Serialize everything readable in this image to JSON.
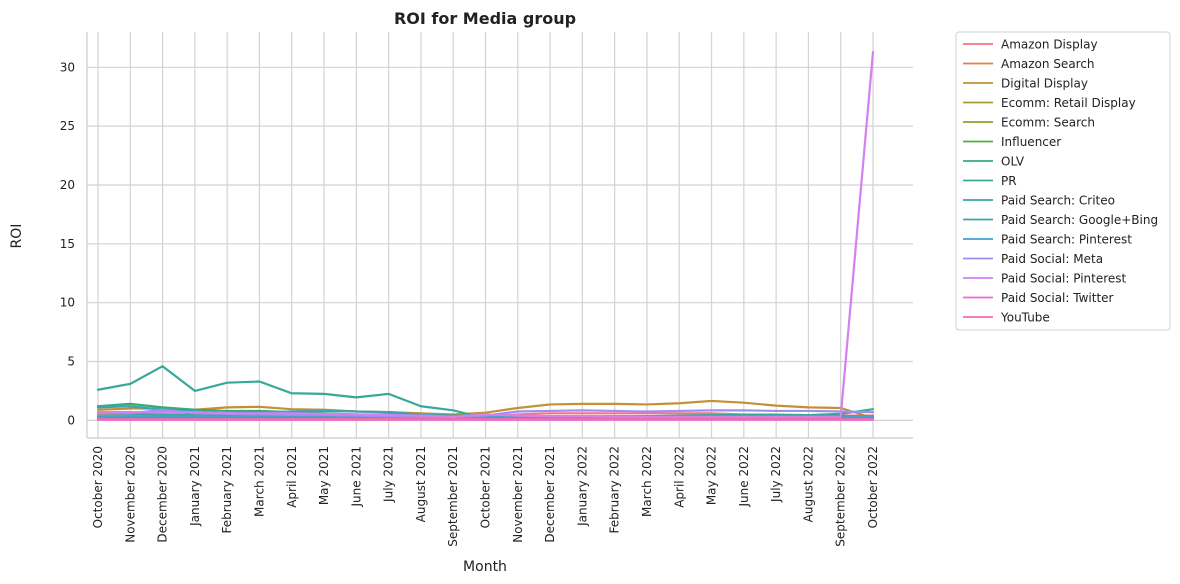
{
  "chart_data": {
    "type": "line",
    "title": "ROI for Media group",
    "xlabel": "Month",
    "ylabel": "ROI",
    "ylim": [
      -1.5,
      33
    ],
    "yticks": [
      0,
      5,
      10,
      15,
      20,
      25,
      30
    ],
    "grid": true,
    "legend_position": "outside-right",
    "categories": [
      "October 2020",
      "November 2020",
      "December 2020",
      "January 2021",
      "February 2021",
      "March 2021",
      "April 2021",
      "May 2021",
      "June 2021",
      "July 2021",
      "August 2021",
      "September 2021",
      "October 2021",
      "November 2021",
      "December 2021",
      "January 2022",
      "February 2022",
      "March 2022",
      "April 2022",
      "May 2022",
      "June 2022",
      "July 2022",
      "August 2022",
      "September 2022",
      "October 2022"
    ],
    "series": [
      {
        "name": "Amazon Display",
        "color": "#f77189",
        "values": [
          0.5,
          0.45,
          0.4,
          0.35,
          0.35,
          0.3,
          0.3,
          0.3,
          0.25,
          0.25,
          0.25,
          0.2,
          0.3,
          0.5,
          0.6,
          0.6,
          0.6,
          0.6,
          0.6,
          0.6,
          0.5,
          0.5,
          0.45,
          0.4,
          0.4
        ]
      },
      {
        "name": "Amazon Search",
        "color": "#e5803a",
        "values": [
          0.3,
          0.3,
          0.25,
          0.25,
          0.25,
          0.2,
          0.2,
          0.2,
          0.2,
          0.2,
          0.2,
          0.2,
          0.2,
          0.2,
          0.2,
          0.2,
          0.2,
          0.2,
          0.2,
          0.2,
          0.2,
          0.2,
          0.2,
          0.2,
          0.2
        ]
      },
      {
        "name": "Digital Display",
        "color": "#c39033",
        "values": [
          0.9,
          1.0,
          1.0,
          0.9,
          1.1,
          1.15,
          0.95,
          0.9,
          0.75,
          0.7,
          0.6,
          0.5,
          0.65,
          1.05,
          1.35,
          1.4,
          1.4,
          1.35,
          1.45,
          1.65,
          1.5,
          1.25,
          1.1,
          1.05,
          0.2
        ]
      },
      {
        "name": "Ecomm: Retail Display",
        "color": "#a89b32",
        "values": [
          0.4,
          0.4,
          0.35,
          0.35,
          0.35,
          0.3,
          0.3,
          0.3,
          0.3,
          0.3,
          0.3,
          0.3,
          0.3,
          0.3,
          0.3,
          0.3,
          0.3,
          0.3,
          0.3,
          0.3,
          0.3,
          0.3,
          0.3,
          0.3,
          0.3
        ]
      },
      {
        "name": "Ecomm: Search",
        "color": "#8aa532",
        "values": [
          0.2,
          0.2,
          0.2,
          0.2,
          0.2,
          0.2,
          0.2,
          0.2,
          0.2,
          0.2,
          0.2,
          0.2,
          0.2,
          0.2,
          0.2,
          0.2,
          0.2,
          0.2,
          0.2,
          0.2,
          0.2,
          0.2,
          0.2,
          0.2,
          0.2
        ]
      },
      {
        "name": "Influencer",
        "color": "#4daf3a",
        "values": [
          0.1,
          0.1,
          0.1,
          0.1,
          0.1,
          0.1,
          0.1,
          0.1,
          0.1,
          0.1,
          0.1,
          0.1,
          0.1,
          0.1,
          0.1,
          0.1,
          0.1,
          0.1,
          0.1,
          0.1,
          0.1,
          0.1,
          0.1,
          0.1,
          0.1
        ]
      },
      {
        "name": "OLV",
        "color": "#36ab7a",
        "values": [
          1.2,
          1.4,
          1.1,
          0.9,
          0.8,
          0.8,
          0.7,
          0.6,
          0.5,
          0.5,
          0.4,
          0.35,
          0.3,
          0.3,
          0.3,
          0.3,
          0.3,
          0.3,
          0.3,
          0.3,
          0.3,
          0.3,
          0.3,
          0.35,
          0.35
        ]
      },
      {
        "name": "PR",
        "color": "#38a898",
        "values": [
          2.6,
          3.1,
          4.6,
          2.5,
          3.2,
          3.3,
          2.3,
          2.25,
          1.95,
          2.25,
          1.2,
          0.85,
          0.15,
          0.4,
          0.25,
          0.3,
          0.3,
          0.35,
          0.4,
          0.45,
          0.45,
          0.45,
          0.45,
          0.55,
          0.95
        ]
      },
      {
        "name": "Paid Search: Criteo",
        "color": "#39a7a5",
        "values": [
          0.6,
          0.55,
          0.5,
          0.5,
          0.45,
          0.45,
          0.45,
          0.45,
          0.4,
          0.4,
          0.4,
          0.35,
          0.35,
          0.35,
          0.35,
          0.35,
          0.35,
          0.35,
          0.35,
          0.35,
          0.35,
          0.35,
          0.35,
          0.35,
          0.35
        ]
      },
      {
        "name": "Paid Search: Google+Bing",
        "color": "#3ba3b5",
        "values": [
          1.1,
          1.2,
          0.9,
          0.75,
          0.6,
          0.65,
          0.75,
          0.8,
          0.75,
          0.7,
          0.5,
          0.4,
          0.35,
          0.35,
          0.3,
          0.3,
          0.3,
          0.3,
          0.3,
          0.3,
          0.3,
          0.3,
          0.3,
          0.3,
          0.25
        ]
      },
      {
        "name": "Paid Search: Pinterest",
        "color": "#3ea0d4",
        "values": [
          0.3,
          0.3,
          0.3,
          0.3,
          0.3,
          0.3,
          0.3,
          0.3,
          0.3,
          0.3,
          0.3,
          0.3,
          0.3,
          0.3,
          0.3,
          0.3,
          0.3,
          0.3,
          0.3,
          0.3,
          0.3,
          0.3,
          0.3,
          0.3,
          0.3
        ]
      },
      {
        "name": "Paid Social: Meta",
        "color": "#9f8ef2",
        "values": [
          0.6,
          0.6,
          0.9,
          0.6,
          0.55,
          0.5,
          0.45,
          0.45,
          0.4,
          0.35,
          0.3,
          0.3,
          0.4,
          0.75,
          0.8,
          0.85,
          0.8,
          0.75,
          0.8,
          0.85,
          0.85,
          0.8,
          0.8,
          0.75,
          0.7
        ]
      },
      {
        "name": "Paid Social: Pinterest",
        "color": "#d57ff0",
        "values": [
          0.7,
          0.7,
          0.7,
          0.7,
          0.6,
          0.6,
          0.6,
          0.55,
          0.5,
          0.45,
          0.4,
          0.3,
          0.5,
          0.4,
          0.35,
          0.35,
          0.3,
          0.3,
          0.3,
          0.3,
          0.3,
          0.3,
          0.3,
          0.3,
          31.3
        ]
      },
      {
        "name": "Paid Social: Twitter",
        "color": "#f168d8",
        "values": [
          0.05,
          0.05,
          0.05,
          0.05,
          0.05,
          0.05,
          0.05,
          0.05,
          0.05,
          0.05,
          0.05,
          0.05,
          0.05,
          0.05,
          0.05,
          0.05,
          0.05,
          0.05,
          0.05,
          0.05,
          0.05,
          0.05,
          0.05,
          0.05,
          0.05
        ]
      },
      {
        "name": "YouTube",
        "color": "#f56cb0",
        "values": [
          0.1,
          0.1,
          0.1,
          0.1,
          0.1,
          0.1,
          0.1,
          0.1,
          0.1,
          0.1,
          0.1,
          0.1,
          0.1,
          0.1,
          0.1,
          0.1,
          0.1,
          0.1,
          0.1,
          0.1,
          0.1,
          0.1,
          0.1,
          0.1,
          0.1
        ]
      }
    ]
  }
}
